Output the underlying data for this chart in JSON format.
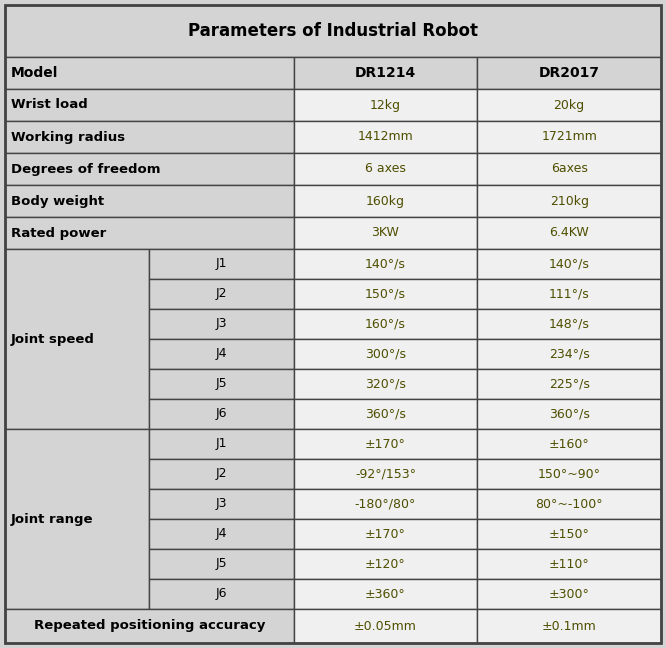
{
  "title": "Parameters of Industrial Robot",
  "background_color": "#d4d4d4",
  "label_bg": "#d4d4d4",
  "data_bg": "#f0f0f0",
  "header_bg": "#d4d4d4",
  "border_color": "#444444",
  "col1_header": "Model",
  "col2_header": "DR1214",
  "col3_header": "DR2017",
  "simple_rows": [
    {
      "label": "Wrist load",
      "v1": "12kg",
      "v2": "20kg"
    },
    {
      "label": "Working radius",
      "v1": "1412mm",
      "v2": "1721mm"
    },
    {
      "label": "Degrees of freedom",
      "v1": "6 axes",
      "v2": "6axes"
    },
    {
      "label": "Body weight",
      "v1": "160kg",
      "v2": "210kg"
    },
    {
      "label": "Rated power",
      "v1": "3KW",
      "v2": "6.4KW"
    }
  ],
  "joint_speed": {
    "label": "Joint speed",
    "joints": [
      "J1",
      "J2",
      "J3",
      "J4",
      "J5",
      "J6"
    ],
    "v1": [
      "140°/s",
      "150°/s",
      "160°/s",
      "300°/s",
      "320°/s",
      "360°/s"
    ],
    "v2": [
      "140°/s",
      "111°/s",
      "148°/s",
      "234°/s",
      "225°/s",
      "360°/s"
    ]
  },
  "joint_range": {
    "label": "Joint range",
    "joints": [
      "J1",
      "J2",
      "J3",
      "J4",
      "J5",
      "J6"
    ],
    "v1": [
      "±170°",
      "-92°/153°",
      "-180°/80°",
      "±170°",
      "±120°",
      "±360°"
    ],
    "v2": [
      "±160°",
      "150°~90°",
      "80°~-100°",
      "±150°",
      "±110°",
      "±300°"
    ]
  },
  "accuracy": {
    "label": "Repeated positioning accuracy",
    "v1": "±0.05mm",
    "v2": "±0.1mm"
  },
  "value_color": "#4e4e00",
  "label_color": "#000000",
  "title_color": "#000000"
}
